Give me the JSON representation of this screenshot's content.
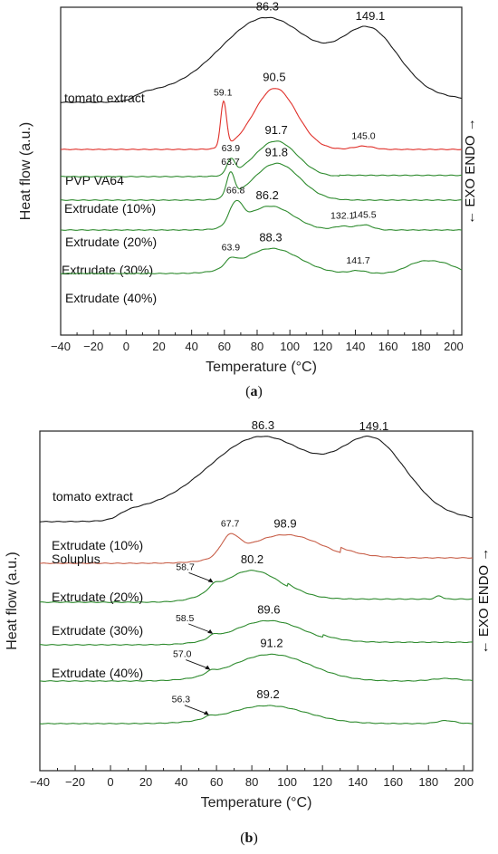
{
  "colors": {
    "black": "#1a1a1a",
    "red": "#e0302a",
    "red_b": "#c8604a",
    "green": "#2e8b2e"
  },
  "chart_data": [
    {
      "type": "line",
      "panel_label": "(a)",
      "panel_letter": "a",
      "xlabel": "Temperature (°C)",
      "ylabel": "Heat flow (a.u.)",
      "side_label": "← EXO  ENDO →",
      "xlim": [
        -40,
        205
      ],
      "xticks": [
        -40,
        -20,
        0,
        20,
        40,
        60,
        80,
        100,
        120,
        140,
        160,
        180,
        200
      ],
      "series": [
        {
          "name": "tomato extract",
          "color": "black",
          "offset": 0.0,
          "peaks": [
            {
              "x": 86.3,
              "label": "86.3",
              "size": "big"
            },
            {
              "x": 149.1,
              "label": "149.1",
              "size": "big"
            }
          ]
        },
        {
          "name": "PVP VA64",
          "color": "red",
          "offset": 1.0,
          "peaks": [
            {
              "x": 59.1,
              "label": "59.1",
              "size": "small"
            },
            {
              "x": 90.5,
              "label": "90.5",
              "size": "big"
            },
            {
              "x": 145.0,
              "label": "145.0",
              "size": "small"
            }
          ]
        },
        {
          "name": "Extrudate (10%)",
          "color": "green",
          "offset": 2.0,
          "peaks": [
            {
              "x": 63.9,
              "label": "63.9",
              "size": "small"
            },
            {
              "x": 91.7,
              "label": "91.7",
              "size": "big"
            }
          ]
        },
        {
          "name": "Extrudate (20%)",
          "color": "green",
          "offset": 3.0,
          "peaks": [
            {
              "x": 63.7,
              "label": "63.7",
              "size": "small"
            },
            {
              "x": 91.8,
              "label": "91.8",
              "size": "big"
            }
          ]
        },
        {
          "name": "Extrudate (30%)",
          "color": "green",
          "offset": 4.0,
          "peaks": [
            {
              "x": 66.8,
              "label": "66.8",
              "size": "small"
            },
            {
              "x": 86.2,
              "label": "86.2",
              "size": "big"
            },
            {
              "x": 132.1,
              "label": "132.1",
              "size": "small"
            },
            {
              "x": 145.5,
              "label": "145.5",
              "size": "small"
            }
          ]
        },
        {
          "name": "Extrudate (40%)",
          "color": "green",
          "offset": 5.0,
          "peaks": [
            {
              "x": 63.9,
              "label": "63.9",
              "size": "small"
            },
            {
              "x": 88.3,
              "label": "88.3",
              "size": "big"
            },
            {
              "x": 141.7,
              "label": "141.7",
              "size": "small"
            }
          ]
        }
      ]
    },
    {
      "type": "line",
      "panel_label": "(b)",
      "panel_letter": "b",
      "xlabel": "Temperature (°C)",
      "ylabel": "Heat flow (a.u.)",
      "side_label": "← EXO  ENDO →",
      "xlim": [
        -40,
        205
      ],
      "xticks": [
        -40,
        -20,
        0,
        20,
        40,
        60,
        80,
        100,
        120,
        140,
        160,
        180,
        200
      ],
      "series": [
        {
          "name": "tomato extract",
          "color": "black",
          "offset": 0.0,
          "peaks": [
            {
              "x": 86.3,
              "label": "86.3",
              "size": "big"
            },
            {
              "x": 149.1,
              "label": "149.1",
              "size": "big"
            }
          ]
        },
        {
          "name": "Soluplus",
          "color": "red_b",
          "offset": 1.0,
          "peaks": [
            {
              "x": 67.7,
              "label": "67.7",
              "size": "small"
            },
            {
              "x": 98.9,
              "label": "98.9",
              "size": "big"
            }
          ]
        },
        {
          "name": "Extrudate (10%)",
          "color": "green",
          "offset": 2.0,
          "peaks": [
            {
              "x": 58.7,
              "label": "58.7",
              "size": "small",
              "arrow": true
            },
            {
              "x": 80.2,
              "label": "80.2",
              "size": "big"
            }
          ]
        },
        {
          "name": "Extrudate (20%)",
          "color": "green",
          "offset": 3.0,
          "peaks": [
            {
              "x": 58.5,
              "label": "58.5",
              "size": "small",
              "arrow": true
            },
            {
              "x": 89.6,
              "label": "89.6",
              "size": "big"
            }
          ]
        },
        {
          "name": "Extrudate (30%)",
          "color": "green",
          "offset": 4.0,
          "peaks": [
            {
              "x": 57.0,
              "label": "57.0",
              "size": "small",
              "arrow": true
            },
            {
              "x": 91.2,
              "label": "91.2",
              "size": "big"
            }
          ]
        },
        {
          "name": "Extrudate (40%)",
          "color": "green",
          "offset": 5.0,
          "peaks": [
            {
              "x": 56.3,
              "label": "56.3",
              "size": "small",
              "arrow": true
            },
            {
              "x": 89.2,
              "label": "89.2",
              "size": "big"
            }
          ]
        }
      ]
    }
  ]
}
